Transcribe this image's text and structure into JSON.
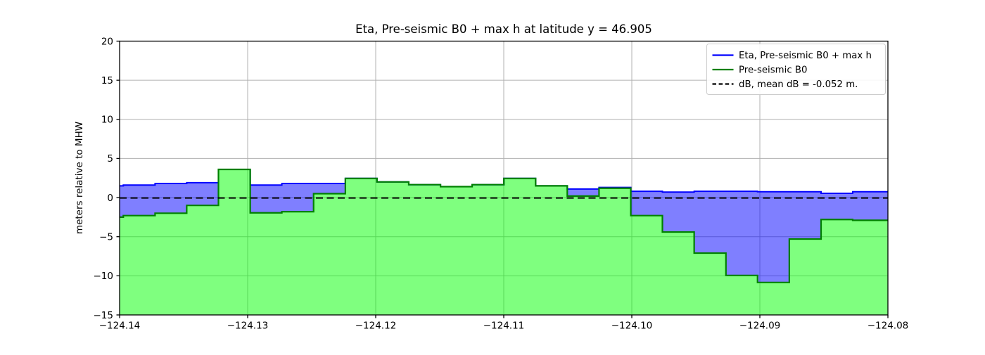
{
  "chart_data": {
    "type": "area",
    "title": "Eta, Pre-seismic B0 + max h at latitude y = 46.905",
    "xlabel": "",
    "ylabel": "meters relative to MHW",
    "xlim": [
      -124.14,
      -124.08
    ],
    "ylim": [
      -15,
      20
    ],
    "grid": true,
    "xticks": {
      "values": [
        -124.14,
        -124.13,
        -124.12,
        -124.11,
        -124.1,
        -124.09,
        -124.08
      ],
      "labels": [
        "−124.14",
        "−124.13",
        "−124.12",
        "−124.11",
        "−124.10",
        "−124.09",
        "−124.08"
      ]
    },
    "yticks": {
      "values": [
        20,
        15,
        10,
        5,
        0,
        -5,
        -10,
        -15
      ],
      "labels": [
        "20",
        "15",
        "10",
        "5",
        "0",
        "−5",
        "−10",
        "−15"
      ]
    },
    "x_edges": [
      -124.14,
      -124.13971,
      -124.13723,
      -124.13476,
      -124.13228,
      -124.1298,
      -124.12733,
      -124.12485,
      -124.12237,
      -124.1199,
      -124.11742,
      -124.11494,
      -124.11247,
      -124.10999,
      -124.10751,
      -124.10504,
      -124.10256,
      -124.10008,
      -124.09761,
      -124.09513,
      -124.09265,
      -124.09018,
      -124.0877,
      -124.08522,
      -124.08275,
      -124.08027,
      -124.08
    ],
    "series": [
      {
        "name": "Eta, Pre-seismic B0 + max h",
        "type": "step",
        "color": "#0000ff",
        "values": [
          1.5,
          1.6,
          1.8,
          1.9,
          3.6,
          1.6,
          1.8,
          1.8,
          2.45,
          2.0,
          1.65,
          1.4,
          1.65,
          2.45,
          1.5,
          1.1,
          1.3,
          0.8,
          0.7,
          0.8,
          0.8,
          0.75,
          0.75,
          0.55,
          0.75,
          0.75
        ]
      },
      {
        "name": "Pre-seismic B0",
        "type": "step",
        "color": "#008000",
        "values": [
          -2.5,
          -2.3,
          -2.0,
          -1.0,
          3.6,
          -1.95,
          -1.8,
          0.5,
          2.45,
          2.0,
          1.65,
          1.4,
          1.65,
          2.45,
          1.5,
          0.2,
          1.2,
          -2.3,
          -4.4,
          -7.1,
          -9.95,
          -10.85,
          -5.3,
          -2.8,
          -2.9,
          -2.9
        ]
      },
      {
        "name": "dB, mean dB = -0.052 m.",
        "type": "dashed-hline",
        "color": "#000000",
        "value": -0.052
      }
    ],
    "colors": {
      "eta_fill": "rgba(0,0,255,0.5)",
      "b0_fill": "rgba(0,255,0,0.5)",
      "eta_line": "#0000ff",
      "b0_line": "#008000",
      "db_line": "#000000",
      "grid": "#b0b0b0",
      "frame": "#000000",
      "legend_edge": "#cccccc"
    },
    "legend": {
      "position": "upper right",
      "entries": [
        {
          "label": "Eta, Pre-seismic B0 + max h",
          "color": "#0000ff",
          "dash": ""
        },
        {
          "label": "Pre-seismic B0",
          "color": "#008000",
          "dash": ""
        },
        {
          "label": "dB, mean dB = -0.052 m.",
          "color": "#000000",
          "dash": "5.5 3.6"
        }
      ]
    }
  }
}
